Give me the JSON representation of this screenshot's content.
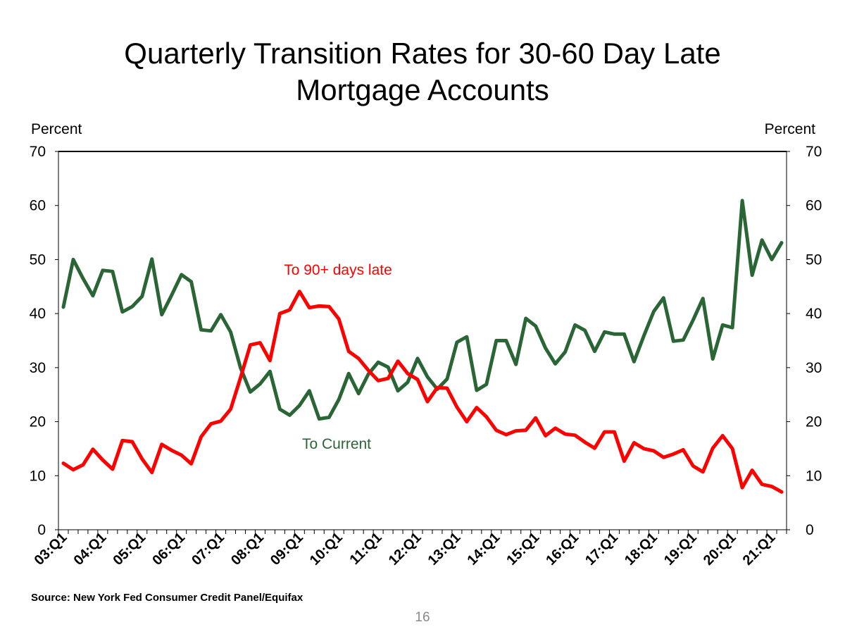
{
  "page": {
    "title_line1": "Quarterly Transition Rates for 30-60 Day Late",
    "title_line2": "Mortgage Accounts",
    "unit_left": "Percent",
    "unit_right": "Percent",
    "source": "Source: New York Fed Consumer Credit Panel/Equifax",
    "page_number": "16"
  },
  "chart_data": {
    "type": "line",
    "title": "Quarterly Transition Rates for 30-60 Day Late Mortgage Accounts",
    "ylabel_left": "Percent",
    "ylabel_right": "Percent",
    "ylim": [
      0,
      70
    ],
    "yticks": [
      0,
      10,
      20,
      30,
      40,
      50,
      60,
      70
    ],
    "x_tick_labels": [
      "03:Q1",
      "04:Q1",
      "05:Q1",
      "06:Q1",
      "07:Q1",
      "08:Q1",
      "09:Q1",
      "10:Q1",
      "11:Q1",
      "12:Q1",
      "13:Q1",
      "14:Q1",
      "15:Q1",
      "16:Q1",
      "17:Q1",
      "18:Q1",
      "19:Q1",
      "20:Q1",
      "21:Q1"
    ],
    "x_start": "03:Q1",
    "x_end": "21:Q3",
    "series": [
      {
        "name": "To Current",
        "color": "#2a6535",
        "values": [
          41.2,
          50.0,
          46.5,
          43.3,
          48.0,
          47.8,
          40.3,
          41.3,
          43.2,
          50.1,
          39.8,
          43.4,
          47.2,
          45.9,
          37.0,
          36.8,
          39.8,
          36.6,
          30.0,
          25.5,
          27.0,
          29.3,
          22.3,
          21.2,
          23.0,
          25.7,
          20.5,
          20.8,
          24.1,
          28.9,
          25.2,
          28.8,
          31.0,
          30.1,
          25.7,
          27.3,
          31.7,
          28.3,
          26.0,
          27.9,
          34.7,
          35.7,
          25.8,
          26.9,
          35.0,
          35.0,
          30.6,
          39.1,
          37.7,
          33.6,
          30.7,
          32.9,
          37.9,
          36.9,
          33.0,
          36.6,
          36.2,
          36.2,
          31.1,
          35.9,
          40.4,
          42.9,
          34.9,
          35.1,
          38.8,
          42.8,
          31.6,
          37.9,
          37.4,
          60.9,
          47.1,
          53.6,
          50.0,
          53.1
        ]
      },
      {
        "name": "To 90+ days late",
        "color": "#ff0000",
        "values": [
          12.3,
          11.1,
          12.0,
          14.9,
          12.9,
          11.2,
          16.5,
          16.3,
          13.1,
          10.6,
          15.8,
          14.7,
          13.8,
          12.2,
          17.2,
          19.6,
          20.1,
          22.3,
          28.1,
          34.2,
          34.6,
          31.3,
          40.0,
          40.7,
          44.1,
          41.1,
          41.4,
          41.3,
          39.0,
          33.0,
          31.7,
          29.5,
          27.6,
          28.0,
          31.2,
          28.9,
          27.8,
          23.7,
          26.3,
          26.2,
          22.7,
          20.0,
          22.6,
          20.9,
          18.4,
          17.6,
          18.3,
          18.4,
          20.7,
          17.4,
          18.8,
          17.7,
          17.5,
          16.2,
          15.1,
          18.1,
          18.1,
          12.7,
          16.1,
          15.0,
          14.6,
          13.4,
          14.0,
          14.8,
          11.8,
          10.7,
          15.1,
          17.4,
          15.0,
          7.8,
          11.0,
          8.4,
          8.0,
          7.0
        ]
      }
    ],
    "annotations": [
      {
        "text": "To 90+ days late",
        "series": "To 90+ days late",
        "color": "#ff0000"
      },
      {
        "text": "To Current",
        "series": "To Current",
        "color": "#2a6535"
      }
    ]
  }
}
